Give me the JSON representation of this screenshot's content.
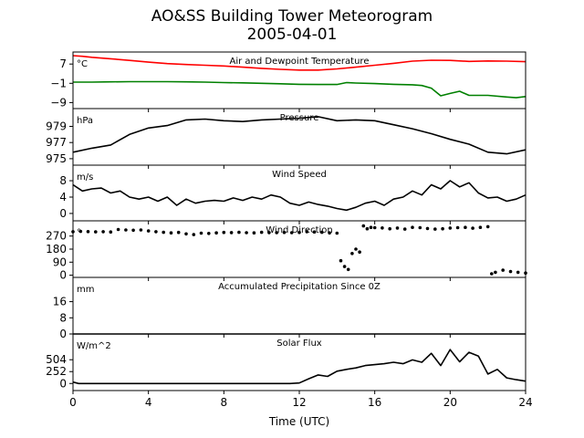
{
  "figure": {
    "title": "AO&SS Building Tower Meteorogram",
    "subtitle": "2005-04-01"
  },
  "chart_data": {
    "type": "line",
    "shared_x": {
      "label": "Time (UTC)",
      "range": [
        0,
        24
      ],
      "ticks": [
        0,
        4,
        8,
        12,
        16,
        20,
        24
      ]
    },
    "panels": [
      {
        "id": "temp",
        "title": "Air and Dewpoint Temperature",
        "unit": "°C",
        "ylim": [
          -11.5,
          12
        ],
        "yticks": [
          7,
          -1,
          -9
        ],
        "ytick_labels": [
          "7",
          "−1",
          "−9"
        ],
        "series": [
          {
            "color": "#ff0000",
            "style": "line",
            "x": [
              0,
              0.5,
              1,
              2,
              3,
              4,
              5,
              6,
              7,
              8,
              9,
              10,
              11,
              12,
              13,
              14,
              15,
              16,
              17,
              18,
              19,
              20,
              21,
              22,
              23,
              24
            ],
            "values": [
              10.5,
              10.2,
              9.8,
              9.2,
              8.5,
              7.8,
              7.2,
              6.8,
              6.5,
              6.2,
              5.7,
              5.2,
              4.8,
              4.5,
              4.5,
              5.0,
              5.7,
              6.5,
              7.3,
              8.2,
              8.6,
              8.5,
              8.1,
              8.3,
              8.2,
              8.0
            ]
          },
          {
            "color": "#008000",
            "style": "line",
            "x": [
              0,
              1,
              2,
              3,
              4,
              5,
              6,
              7,
              8,
              9,
              10,
              11,
              12,
              13,
              14,
              14.5,
              15,
              16,
              17,
              18,
              18.5,
              19,
              19.5,
              20,
              20.5,
              21,
              22,
              23,
              23.5,
              24
            ],
            "values": [
              -0.5,
              -0.5,
              -0.4,
              -0.3,
              -0.3,
              -0.3,
              -0.4,
              -0.5,
              -0.7,
              -0.8,
              -1.0,
              -1.2,
              -1.4,
              -1.5,
              -1.5,
              -0.7,
              -0.9,
              -1.1,
              -1.4,
              -1.6,
              -1.9,
              -3.0,
              -6.2,
              -5.2,
              -4.3,
              -6.0,
              -6.0,
              -6.7,
              -7.0,
              -6.5
            ]
          }
        ]
      },
      {
        "id": "pressure",
        "title": "Pressure",
        "unit": "hPa",
        "ylim": [
          974.2,
          981.2
        ],
        "yticks": [
          979,
          977,
          975
        ],
        "ytick_labels": [
          "979",
          "977",
          "975"
        ],
        "series": [
          {
            "color": "#000000",
            "style": "line",
            "x": [
              0,
              1,
              2,
              3,
              4,
              5,
              6,
              7,
              8,
              9,
              10,
              11,
              12,
              13,
              14,
              15,
              16,
              17,
              18,
              19,
              20,
              21,
              22,
              23,
              24
            ],
            "values": [
              975.8,
              976.3,
              976.7,
              978.0,
              978.8,
              979.1,
              979.8,
              979.9,
              979.7,
              979.6,
              979.8,
              979.9,
              980.0,
              980.2,
              979.7,
              979.8,
              979.7,
              979.2,
              978.7,
              978.1,
              977.4,
              976.8,
              975.8,
              975.6,
              976.1
            ]
          }
        ]
      },
      {
        "id": "wind_speed",
        "title": "Wind Speed",
        "unit": "m/s",
        "ylim": [
          -1.8,
          11.8
        ],
        "yticks": [
          8,
          4,
          0
        ],
        "ytick_labels": [
          "8",
          "4",
          "0"
        ],
        "series": [
          {
            "color": "#000000",
            "style": "line",
            "x": [
              0,
              0.5,
              1,
              1.5,
              2,
              2.5,
              3,
              3.5,
              4,
              4.5,
              5,
              5.5,
              6,
              6.5,
              7,
              7.5,
              8,
              8.5,
              9,
              9.5,
              10,
              10.5,
              11,
              11.5,
              12,
              12.5,
              13,
              13.5,
              14,
              14.5,
              15,
              15.5,
              16,
              16.5,
              17,
              17.5,
              18,
              18.5,
              19,
              19.5,
              20,
              20.5,
              21,
              21.5,
              22,
              22.5,
              23,
              23.5,
              24
            ],
            "values": [
              7.0,
              5.5,
              6.0,
              6.2,
              5.0,
              5.5,
              4.0,
              3.5,
              4.0,
              3.0,
              4.0,
              2.0,
              3.5,
              2.5,
              3.0,
              3.2,
              3.0,
              3.8,
              3.2,
              4.0,
              3.5,
              4.5,
              4.0,
              2.5,
              2.0,
              2.8,
              2.2,
              1.8,
              1.2,
              0.8,
              1.5,
              2.5,
              3.0,
              2.0,
              3.5,
              4.0,
              5.5,
              4.5,
              7.0,
              6.0,
              8.0,
              6.5,
              7.5,
              5.0,
              3.8,
              4.0,
              3.0,
              3.5,
              4.5
            ]
          }
        ]
      },
      {
        "id": "wind_dir",
        "title": "Wind Direction",
        "unit": "°",
        "ylim": [
          -15,
          375
        ],
        "yticks": [
          270,
          180,
          90,
          0
        ],
        "ytick_labels": [
          "270",
          "180",
          "90",
          "0"
        ],
        "series": [
          {
            "color": "#000000",
            "style": "scatter",
            "x": [
              0,
              0.4,
              0.8,
              1.2,
              1.6,
              2,
              2.4,
              2.8,
              3.2,
              3.6,
              4,
              4.4,
              4.8,
              5.2,
              5.6,
              6,
              6.4,
              6.8,
              7.2,
              7.6,
              8,
              8.4,
              8.8,
              9.2,
              9.6,
              10,
              10.4,
              10.8,
              11.2,
              11.6,
              12,
              12.4,
              12.8,
              13.2,
              13.6,
              14,
              14.2,
              14.4,
              14.6,
              14.8,
              15,
              15.2,
              15.4,
              15.6,
              15.8,
              16,
              16.4,
              16.8,
              17.2,
              17.6,
              18,
              18.4,
              18.8,
              19.2,
              19.6,
              20,
              20.4,
              20.8,
              21.2,
              21.6,
              22,
              22.2,
              22.4,
              22.8,
              23.2,
              23.6,
              24
            ],
            "values": [
              300,
              302,
              301,
              299,
              300,
              298,
              315,
              312,
              310,
              312,
              305,
              300,
              296,
              292,
              295,
              285,
              280,
              290,
              288,
              292,
              295,
              294,
              296,
              293,
              292,
              296,
              294,
              293,
              295,
              293,
              295,
              300,
              298,
              296,
              292,
              290,
              100,
              60,
              40,
              150,
              180,
              160,
              340,
              320,
              330,
              328,
              326,
              320,
              325,
              318,
              330,
              328,
              322,
              318,
              320,
              325,
              328,
              330,
              324,
              330,
              335,
              10,
              20,
              35,
              25,
              20,
              15
            ]
          }
        ]
      },
      {
        "id": "precip",
        "title": "Accumulated Precipitation Since 0Z",
        "unit": "mm",
        "ylim": [
          0,
          28
        ],
        "yticks": [
          16,
          8,
          0
        ],
        "ytick_labels": [
          "16",
          "8",
          "0"
        ],
        "series": [
          {
            "color": "#000000",
            "style": "line",
            "x": [
              0,
              24
            ],
            "values": [
              0,
              0
            ]
          }
        ]
      },
      {
        "id": "solar",
        "title": "Solar Flux",
        "unit": "W/m^2",
        "ylim": [
          -150,
          1050
        ],
        "yticks": [
          504,
          252,
          0
        ],
        "ytick_labels": [
          "504",
          "252",
          "0"
        ],
        "series": [
          {
            "color": "#000000",
            "style": "line",
            "x": [
              0,
              0.3,
              1,
              2,
              3,
              4,
              5,
              6,
              7,
              8,
              9,
              10,
              11,
              11.5,
              12,
              12.5,
              13,
              13.5,
              14,
              14.5,
              15,
              15.5,
              16,
              16.5,
              17,
              17.5,
              18,
              18.5,
              19,
              19.5,
              20,
              20.5,
              21,
              21.5,
              22,
              22.5,
              23,
              23.5,
              24
            ],
            "values": [
              30,
              0,
              0,
              0,
              0,
              0,
              0,
              0,
              0,
              0,
              0,
              0,
              0,
              0,
              10,
              100,
              180,
              150,
              260,
              300,
              330,
              380,
              400,
              420,
              450,
              420,
              500,
              450,
              640,
              380,
              720,
              460,
              660,
              580,
              200,
              300,
              120,
              80,
              50
            ]
          }
        ]
      }
    ]
  }
}
